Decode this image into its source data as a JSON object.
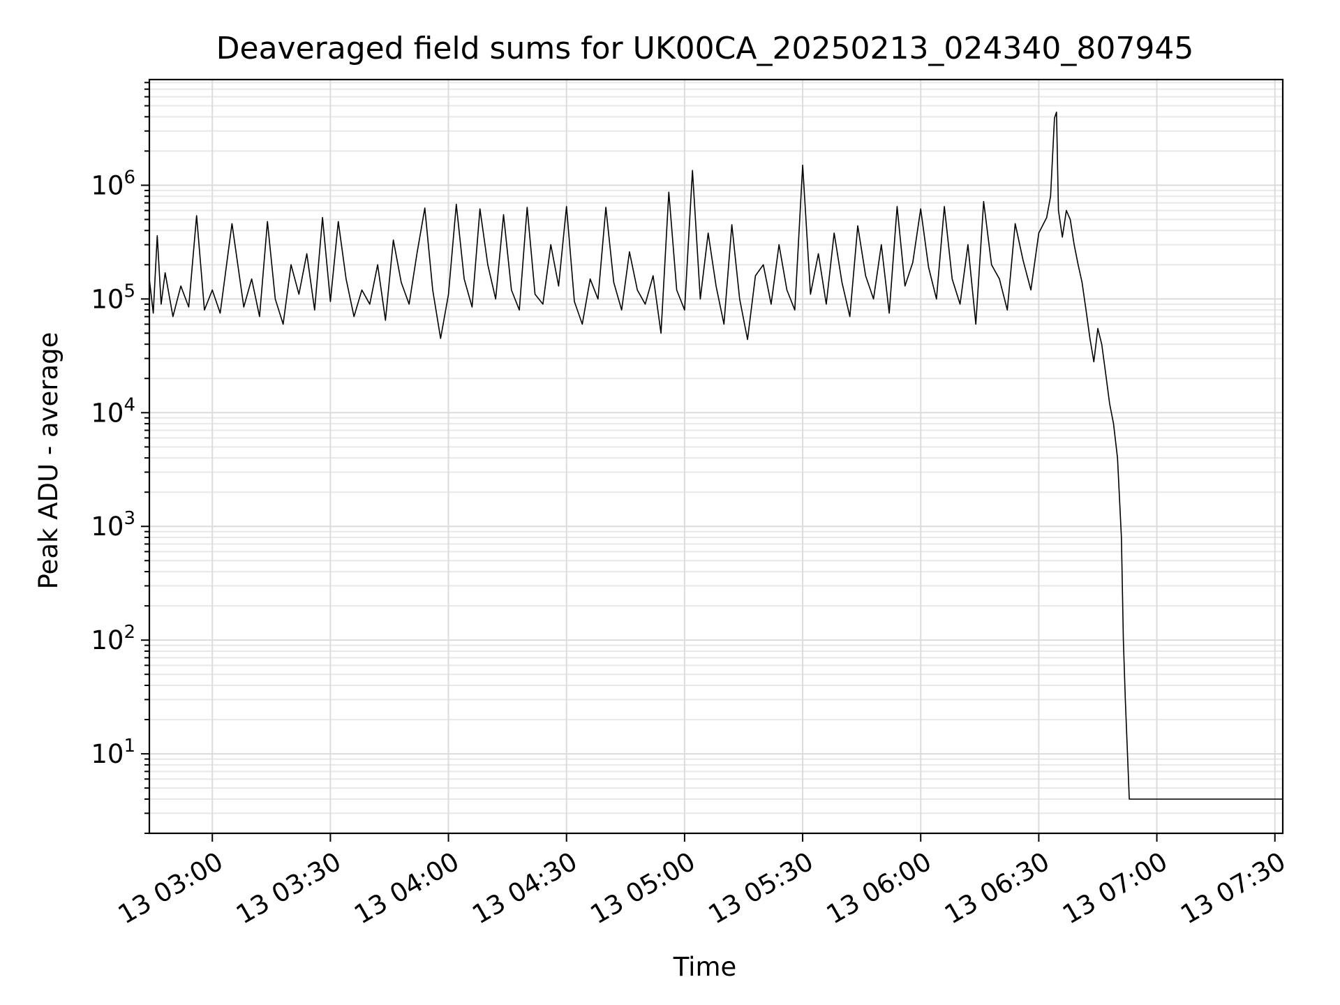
{
  "chart_data": {
    "type": "line",
    "title": "Deaveraged field sums for UK00CA_20250213_024340_807945",
    "xlabel": "Time",
    "ylabel": "Peak ADU - average",
    "x_scale": "time",
    "y_scale": "log",
    "xlim": [
      "13 02:44",
      "13 07:32"
    ],
    "ylim": [
      2,
      8500000
    ],
    "grid": true,
    "x_ticks": [
      {
        "label": "13 03:00",
        "value": "13 03:00"
      },
      {
        "label": "13 03:30",
        "value": "13 03:30"
      },
      {
        "label": "13 04:00",
        "value": "13 04:00"
      },
      {
        "label": "13 04:30",
        "value": "13 04:30"
      },
      {
        "label": "13 05:00",
        "value": "13 05:00"
      },
      {
        "label": "13 05:30",
        "value": "13 05:30"
      },
      {
        "label": "13 06:00",
        "value": "13 06:00"
      },
      {
        "label": "13 06:30",
        "value": "13 06:30"
      },
      {
        "label": "13 07:00",
        "value": "13 07:00"
      },
      {
        "label": "13 07:30",
        "value": "13 07:30"
      }
    ],
    "y_ticks": [
      {
        "base": "10",
        "exp": "1",
        "value": 10
      },
      {
        "base": "10",
        "exp": "2",
        "value": 100
      },
      {
        "base": "10",
        "exp": "3",
        "value": 1000
      },
      {
        "base": "10",
        "exp": "4",
        "value": 10000
      },
      {
        "base": "10",
        "exp": "5",
        "value": 100000
      },
      {
        "base": "10",
        "exp": "6",
        "value": 1000000
      }
    ],
    "series": [
      {
        "color": "#000000",
        "points": [
          [
            "13 02:44",
            150000
          ],
          [
            "13 02:45",
            75000
          ],
          [
            "13 02:46",
            360000
          ],
          [
            "13 02:47",
            90000
          ],
          [
            "13 02:48",
            170000
          ],
          [
            "13 02:50",
            70000
          ],
          [
            "13 02:52",
            130000
          ],
          [
            "13 02:54",
            85000
          ],
          [
            "13 02:56",
            540000
          ],
          [
            "13 02:58",
            80000
          ],
          [
            "13 03:00",
            120000
          ],
          [
            "13 03:02",
            75000
          ],
          [
            "13 03:05",
            460000
          ],
          [
            "13 03:08",
            85000
          ],
          [
            "13 03:10",
            150000
          ],
          [
            "13 03:12",
            70000
          ],
          [
            "13 03:14",
            480000
          ],
          [
            "13 03:16",
            100000
          ],
          [
            "13 03:18",
            60000
          ],
          [
            "13 03:20",
            200000
          ],
          [
            "13 03:22",
            110000
          ],
          [
            "13 03:24",
            250000
          ],
          [
            "13 03:26",
            80000
          ],
          [
            "13 03:28",
            520000
          ],
          [
            "13 03:30",
            95000
          ],
          [
            "13 03:32",
            480000
          ],
          [
            "13 03:34",
            150000
          ],
          [
            "13 03:36",
            70000
          ],
          [
            "13 03:38",
            120000
          ],
          [
            "13 03:40",
            90000
          ],
          [
            "13 03:42",
            200000
          ],
          [
            "13 03:44",
            65000
          ],
          [
            "13 03:46",
            330000
          ],
          [
            "13 03:48",
            140000
          ],
          [
            "13 03:50",
            90000
          ],
          [
            "13 03:52",
            250000
          ],
          [
            "13 03:54",
            630000
          ],
          [
            "13 03:56",
            120000
          ],
          [
            "13 03:58",
            45000
          ],
          [
            "13 04:00",
            110000
          ],
          [
            "13 04:02",
            680000
          ],
          [
            "13 04:04",
            150000
          ],
          [
            "13 04:06",
            85000
          ],
          [
            "13 04:08",
            620000
          ],
          [
            "13 04:10",
            200000
          ],
          [
            "13 04:12",
            100000
          ],
          [
            "13 04:14",
            550000
          ],
          [
            "13 04:16",
            120000
          ],
          [
            "13 04:18",
            80000
          ],
          [
            "13 04:20",
            640000
          ],
          [
            "13 04:22",
            110000
          ],
          [
            "13 04:24",
            90000
          ],
          [
            "13 04:26",
            300000
          ],
          [
            "13 04:28",
            130000
          ],
          [
            "13 04:30",
            650000
          ],
          [
            "13 04:32",
            95000
          ],
          [
            "13 04:34",
            60000
          ],
          [
            "13 04:36",
            150000
          ],
          [
            "13 04:38",
            100000
          ],
          [
            "13 04:40",
            640000
          ],
          [
            "13 04:42",
            140000
          ],
          [
            "13 04:44",
            80000
          ],
          [
            "13 04:46",
            260000
          ],
          [
            "13 04:48",
            120000
          ],
          [
            "13 04:50",
            90000
          ],
          [
            "13 04:52",
            160000
          ],
          [
            "13 04:54",
            50000
          ],
          [
            "13 04:56",
            870000
          ],
          [
            "13 04:58",
            120000
          ],
          [
            "13 05:00",
            80000
          ],
          [
            "13 05:02",
            1350000
          ],
          [
            "13 05:04",
            100000
          ],
          [
            "13 05:06",
            380000
          ],
          [
            "13 05:08",
            130000
          ],
          [
            "13 05:10",
            60000
          ],
          [
            "13 05:12",
            450000
          ],
          [
            "13 05:14",
            100000
          ],
          [
            "13 05:16",
            44000
          ],
          [
            "13 05:18",
            160000
          ],
          [
            "13 05:20",
            200000
          ],
          [
            "13 05:22",
            90000
          ],
          [
            "13 05:24",
            300000
          ],
          [
            "13 05:26",
            120000
          ],
          [
            "13 05:28",
            80000
          ],
          [
            "13 05:30",
            1500000
          ],
          [
            "13 05:32",
            110000
          ],
          [
            "13 05:34",
            250000
          ],
          [
            "13 05:36",
            90000
          ],
          [
            "13 05:38",
            380000
          ],
          [
            "13 05:40",
            140000
          ],
          [
            "13 05:42",
            70000
          ],
          [
            "13 05:44",
            440000
          ],
          [
            "13 05:46",
            160000
          ],
          [
            "13 05:48",
            100000
          ],
          [
            "13 05:50",
            300000
          ],
          [
            "13 05:52",
            75000
          ],
          [
            "13 05:54",
            650000
          ],
          [
            "13 05:56",
            130000
          ],
          [
            "13 05:58",
            210000
          ],
          [
            "13 06:00",
            620000
          ],
          [
            "13 06:02",
            190000
          ],
          [
            "13 06:04",
            100000
          ],
          [
            "13 06:06",
            650000
          ],
          [
            "13 06:08",
            150000
          ],
          [
            "13 06:10",
            90000
          ],
          [
            "13 06:12",
            300000
          ],
          [
            "13 06:14",
            60000
          ],
          [
            "13 06:16",
            720000
          ],
          [
            "13 06:18",
            200000
          ],
          [
            "13 06:20",
            150000
          ],
          [
            "13 06:22",
            80000
          ],
          [
            "13 06:24",
            460000
          ],
          [
            "13 06:26",
            220000
          ],
          [
            "13 06:28",
            120000
          ],
          [
            "13 06:30",
            380000
          ],
          [
            "13 06:32",
            520000
          ],
          [
            "13 06:33",
            800000
          ],
          [
            "13 06:34",
            3900000
          ],
          [
            "13 06:34.5",
            4400000
          ],
          [
            "13 06:35",
            600000
          ],
          [
            "13 06:36",
            350000
          ],
          [
            "13 06:37",
            600000
          ],
          [
            "13 06:38",
            500000
          ],
          [
            "13 06:39",
            300000
          ],
          [
            "13 06:40",
            200000
          ],
          [
            "13 06:41",
            140000
          ],
          [
            "13 06:42",
            80000
          ],
          [
            "13 06:43",
            45000
          ],
          [
            "13 06:44",
            28000
          ],
          [
            "13 06:45",
            55000
          ],
          [
            "13 06:46",
            40000
          ],
          [
            "13 06:47",
            22000
          ],
          [
            "13 06:48",
            12000
          ],
          [
            "13 06:49",
            8000
          ],
          [
            "13 06:50",
            4000
          ],
          [
            "13 06:51",
            800
          ],
          [
            "13 06:51.5",
            100
          ],
          [
            "13 06:52",
            30
          ],
          [
            "13 06:53",
            4
          ],
          [
            "13 07:32",
            4
          ]
        ]
      }
    ]
  }
}
